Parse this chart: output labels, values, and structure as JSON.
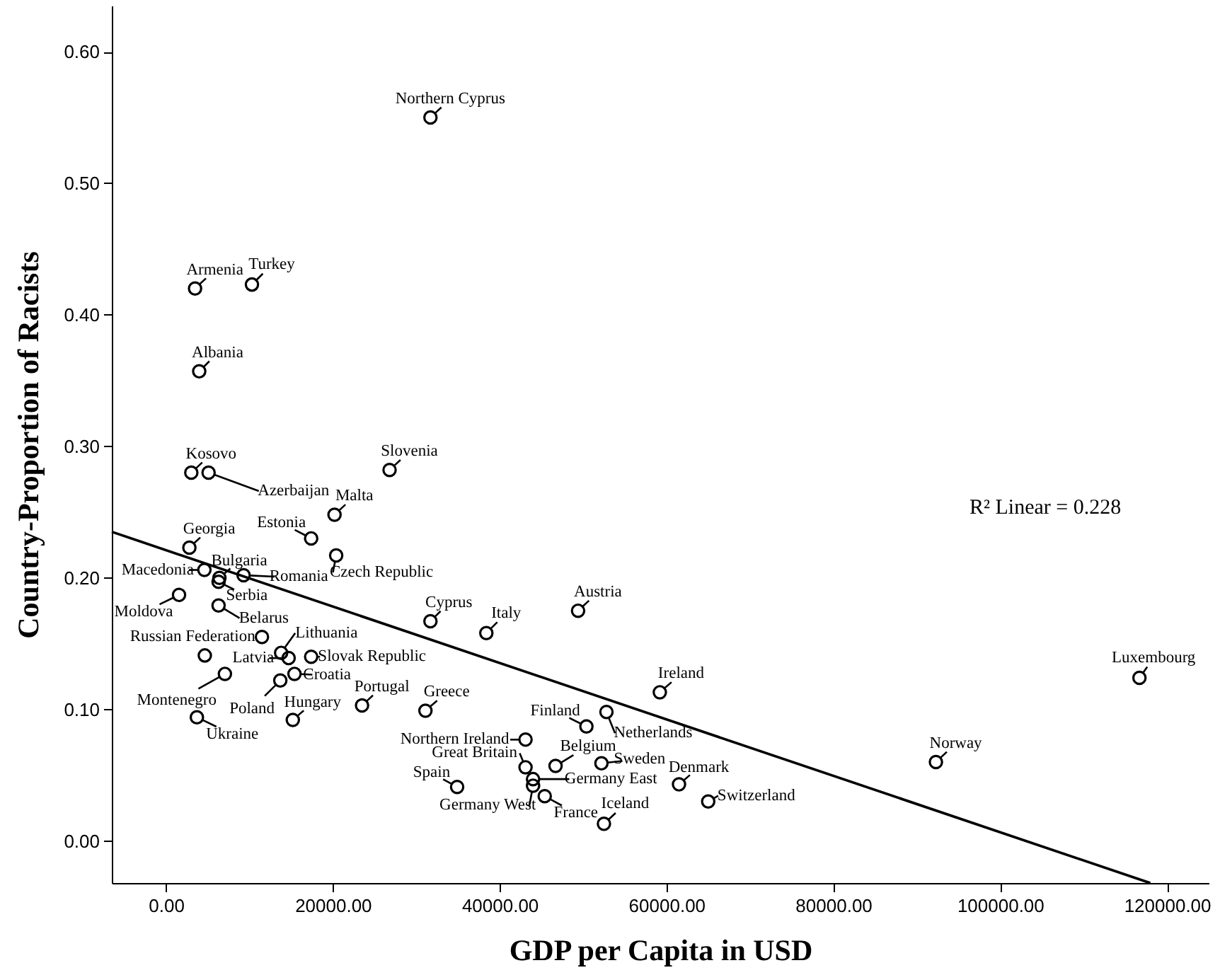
{
  "chart_data": {
    "type": "scatter",
    "xlabel": "GDP per Capita in USD",
    "ylabel": "Country-Proportion of Racists",
    "xlim": [
      -6500,
      125000
    ],
    "ylim": [
      -0.032,
      0.635
    ],
    "xticks": [
      {
        "value": 0,
        "label": "0.00"
      },
      {
        "value": 20000,
        "label": "20000.00"
      },
      {
        "value": 40000,
        "label": "40000.00"
      },
      {
        "value": 60000,
        "label": "60000.00"
      },
      {
        "value": 80000,
        "label": "80000.00"
      },
      {
        "value": 100000,
        "label": "100000.00"
      },
      {
        "value": 120000,
        "label": "120000.00"
      }
    ],
    "yticks": [
      {
        "value": 0,
        "label": "0.00"
      },
      {
        "value": 0.1,
        "label": "0.10"
      },
      {
        "value": 0.2,
        "label": "0.20"
      },
      {
        "value": 0.3,
        "label": "0.30"
      },
      {
        "value": 0.4,
        "label": "0.40"
      },
      {
        "value": 0.5,
        "label": "0.50"
      },
      {
        "value": 0.6,
        "label": "0.60"
      }
    ],
    "grid": false,
    "marker": "circle",
    "series": [
      {
        "color": "#000000",
        "x": [
          31700,
          3480,
          10300,
          3980,
          3030,
          5100,
          26800,
          20200,
          17400,
          2800,
          20400,
          4600,
          6400,
          6300,
          9300,
          1560,
          6300,
          11500,
          13800,
          14700,
          17400,
          15400,
          13700,
          7060,
          23500,
          31100,
          15200,
          3700,
          31700,
          49400,
          38400,
          59200,
          52800,
          50400,
          43100,
          43100,
          46700,
          52200,
          44000,
          44000,
          45400,
          34900,
          52500,
          61500,
          65000,
          92300,
          116700,
          4650
        ],
        "values": [
          0.55,
          0.42,
          0.423,
          0.357,
          0.28,
          0.28,
          0.282,
          0.248,
          0.23,
          0.223,
          0.217,
          0.206,
          0.2,
          0.197,
          0.202,
          0.187,
          0.179,
          0.155,
          0.143,
          0.139,
          0.14,
          0.127,
          0.122,
          0.127,
          0.103,
          0.099,
          0.092,
          0.094,
          0.167,
          0.175,
          0.158,
          0.113,
          0.098,
          0.087,
          0.077,
          0.056,
          0.057,
          0.059,
          0.047,
          0.042,
          0.034,
          0.041,
          0.013,
          0.043,
          0.03,
          0.06,
          0.124,
          0.141
        ]
      },
      {
        "type": "line",
        "marker": "none",
        "color": "#000000",
        "x": [
          -6500,
          118000
        ],
        "values": [
          0.235,
          -0.032
        ]
      }
    ],
    "annotations": [
      {
        "text": "Northern Cyprus",
        "x": 31700,
        "y": 0.55
      },
      {
        "text": "Armenia",
        "x": 3480,
        "y": 0.42
      },
      {
        "text": "Turkey",
        "x": 10300,
        "y": 0.423
      },
      {
        "text": "Albania",
        "x": 3980,
        "y": 0.357
      },
      {
        "text": "Kosovo",
        "x": 3030,
        "y": 0.28
      },
      {
        "text": "Azerbaijan",
        "x": 5100,
        "y": 0.28
      },
      {
        "text": "Slovenia",
        "x": 26800,
        "y": 0.282
      },
      {
        "text": "Malta",
        "x": 20200,
        "y": 0.248
      },
      {
        "text": "Estonia",
        "x": 17400,
        "y": 0.23
      },
      {
        "text": "Georgia",
        "x": 2800,
        "y": 0.223
      },
      {
        "text": "Czech Republic",
        "x": 20400,
        "y": 0.217
      },
      {
        "text": "Macedonia",
        "x": 4600,
        "y": 0.206
      },
      {
        "text": "Bulgaria",
        "x": 6400,
        "y": 0.2
      },
      {
        "text": "Serbia",
        "x": 6300,
        "y": 0.197
      },
      {
        "text": "Romania",
        "x": 9300,
        "y": 0.202
      },
      {
        "text": "Moldova",
        "x": 1560,
        "y": 0.187
      },
      {
        "text": "Belarus",
        "x": 6300,
        "y": 0.179
      },
      {
        "text": "Russian Federation",
        "x": 11500,
        "y": 0.155
      },
      {
        "text": "Lithuania",
        "x": 13800,
        "y": 0.143
      },
      {
        "text": "Latvia",
        "x": 14700,
        "y": 0.139
      },
      {
        "text": "Slovak Republic",
        "x": 17400,
        "y": 0.14
      },
      {
        "text": "Croatia",
        "x": 15400,
        "y": 0.127
      },
      {
        "text": "Poland",
        "x": 13700,
        "y": 0.122
      },
      {
        "text": "Montenegro",
        "x": 7060,
        "y": 0.127
      },
      {
        "text": "Portugal",
        "x": 23500,
        "y": 0.103
      },
      {
        "text": "Greece",
        "x": 31100,
        "y": 0.099
      },
      {
        "text": "Hungary",
        "x": 15200,
        "y": 0.092
      },
      {
        "text": "Ukraine",
        "x": 3700,
        "y": 0.094
      },
      {
        "text": "Cyprus",
        "x": 31700,
        "y": 0.167
      },
      {
        "text": "Austria",
        "x": 49400,
        "y": 0.175
      },
      {
        "text": "Italy",
        "x": 38400,
        "y": 0.158
      },
      {
        "text": "Ireland",
        "x": 59200,
        "y": 0.113
      },
      {
        "text": "Netherlands",
        "x": 52800,
        "y": 0.098
      },
      {
        "text": "Finland",
        "x": 50400,
        "y": 0.087
      },
      {
        "text": "Northern Ireland",
        "x": 43100,
        "y": 0.077
      },
      {
        "text": "Great Britain",
        "x": 43100,
        "y": 0.056
      },
      {
        "text": "Belgium",
        "x": 46700,
        "y": 0.057
      },
      {
        "text": "Sweden",
        "x": 52200,
        "y": 0.059
      },
      {
        "text": "Germany East",
        "x": 44000,
        "y": 0.047
      },
      {
        "text": "Germany West",
        "x": 44000,
        "y": 0.042
      },
      {
        "text": "France",
        "x": 45400,
        "y": 0.034
      },
      {
        "text": "Spain",
        "x": 34900,
        "y": 0.041
      },
      {
        "text": "Iceland",
        "x": 52500,
        "y": 0.013
      },
      {
        "text": "Denmark",
        "x": 61500,
        "y": 0.043
      },
      {
        "text": "Switzerland",
        "x": 65000,
        "y": 0.03
      },
      {
        "text": "Norway",
        "x": 92300,
        "y": 0.06
      },
      {
        "text": "Luxembourg",
        "x": 116700,
        "y": 0.124
      },
      "R² Linear = 0.228"
    ]
  }
}
